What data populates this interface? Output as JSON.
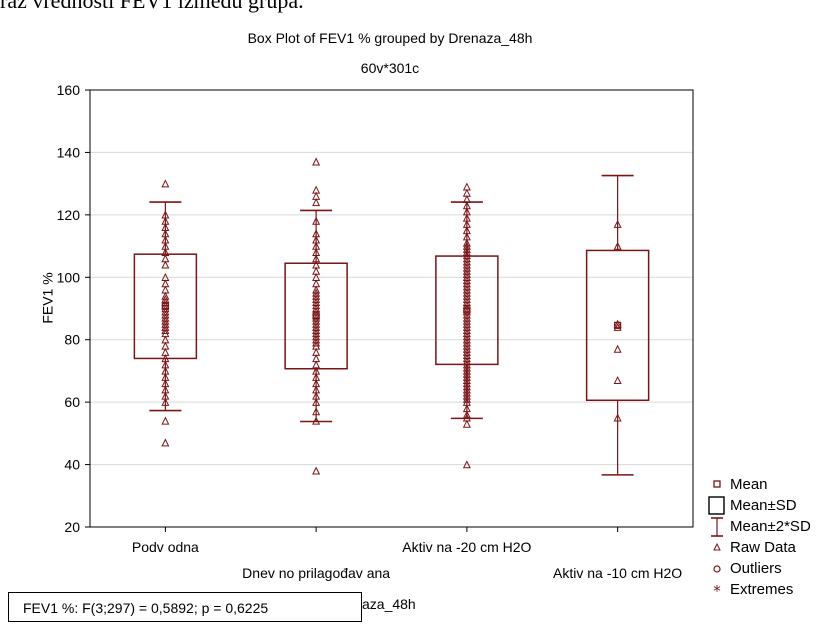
{
  "caption_fragment": "raz vrednosti FEV1 između grupa.",
  "chart_data": {
    "type": "box",
    "title": "Box Plot of FEV1 % grouped by   Drenaza_48h",
    "subtitle": "60v*301c",
    "ylabel": "FEV1 %",
    "xlabel_fragment": "aza_48h",
    "ylim": [
      20,
      160
    ],
    "yticks": [
      20,
      40,
      60,
      80,
      100,
      120,
      140,
      160
    ],
    "grid": true,
    "legend_position": "bottom-right",
    "color": "#7b1416",
    "categories": [
      "Podv odna",
      "Dnev no prilagođav ana",
      "Aktiv na -20 cm H2O",
      "Aktiv na -10 cm H2O"
    ],
    "groups": [
      {
        "category": "Podv odna",
        "mean": 90.7,
        "sd_low": 74,
        "sd_high": 107.4,
        "whisker_low": 57.3,
        "whisker_high": 124.1,
        "raw": [
          130,
          120,
          118,
          116,
          114,
          112,
          110,
          108,
          106,
          104,
          100,
          98,
          96,
          94,
          93,
          92,
          91,
          90,
          89,
          88,
          87,
          86,
          85,
          84,
          83,
          82,
          80,
          78,
          76,
          74,
          72,
          70,
          68,
          66,
          64,
          62,
          60,
          54,
          47
        ]
      },
      {
        "category": "Dnev no prilagođav ana",
        "mean": 87.6,
        "sd_low": 70.7,
        "sd_high": 104.5,
        "whisker_low": 53.8,
        "whisker_high": 121.4,
        "raw": [
          137,
          128,
          126,
          124,
          118,
          114,
          112,
          110,
          108,
          106,
          104,
          102,
          100,
          98,
          96,
          95,
          94,
          93,
          92,
          91,
          90,
          89,
          88,
          87,
          86,
          85,
          84,
          83,
          82,
          81,
          80,
          79,
          78,
          76,
          74,
          72,
          70,
          68,
          66,
          64,
          62,
          60,
          57,
          54,
          38
        ]
      },
      {
        "category": "Aktiv na -20 cm H2O",
        "mean": 89.5,
        "sd_low": 72.1,
        "sd_high": 106.8,
        "whisker_low": 54.8,
        "whisker_high": 124.1,
        "raw": [
          129,
          127,
          125,
          123,
          121,
          119,
          117,
          115,
          113,
          111,
          110,
          109,
          108,
          107,
          106,
          105,
          104,
          103,
          102,
          101,
          100,
          99,
          98,
          97,
          96,
          95,
          94,
          93,
          92,
          91,
          90,
          89,
          88,
          87,
          86,
          85,
          84,
          83,
          82,
          81,
          80,
          79,
          78,
          77,
          76,
          75,
          74,
          73,
          72,
          71,
          70,
          69,
          68,
          67,
          66,
          65,
          64,
          63,
          62,
          61,
          60,
          58,
          56,
          55,
          53,
          40
        ]
      },
      {
        "category": "Aktiv na -10 cm H2O",
        "mean": 84.6,
        "sd_low": 60.6,
        "sd_high": 108.6,
        "whisker_low": 36.7,
        "whisker_high": 132.6,
        "raw": [
          117,
          110,
          85,
          84,
          77,
          67,
          55
        ]
      }
    ]
  },
  "legend": [
    {
      "label": "Mean",
      "symbol": "mean"
    },
    {
      "label": "Mean±SD",
      "symbol": "box"
    },
    {
      "label": "Mean±2*SD",
      "symbol": "whisker"
    },
    {
      "label": "Raw Data",
      "symbol": "raw"
    },
    {
      "label": "Outliers",
      "symbol": "outlier"
    },
    {
      "label": "Extremes",
      "symbol": "extreme"
    }
  ],
  "stats_text": "FEV1 %:   F(3;297) = 0,5892;  p = 0,6225"
}
